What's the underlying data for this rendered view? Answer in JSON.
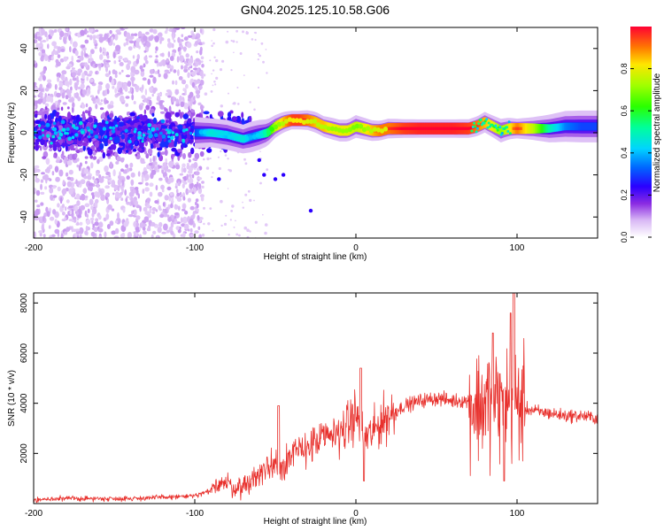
{
  "title": "GN04.2025.125.10.58.G06",
  "chart_data": [
    {
      "type": "heatmap",
      "xlabel": "Height of straight line (km)",
      "ylabel": "Frequency (Hz)",
      "xlim": [
        -200,
        150
      ],
      "ylim": [
        -50,
        50
      ],
      "xticks": [
        -200,
        -100,
        0,
        100
      ],
      "yticks": [
        -40,
        -20,
        0,
        20,
        40
      ],
      "colorbar": {
        "label": "Normalized spectral amplitude",
        "range": [
          0,
          1
        ],
        "ticks": [
          "0.0",
          "0.2",
          "0.4",
          "0.6",
          "0.8"
        ]
      },
      "ridge": {
        "x": [
          -200,
          -180,
          -160,
          -140,
          -120,
          -100,
          -90,
          -80,
          -70,
          -65,
          -60,
          -55,
          -50,
          -45,
          -40,
          -35,
          -30,
          -25,
          -20,
          -15,
          -10,
          -5,
          0,
          5,
          10,
          15,
          20,
          30,
          40,
          50,
          60,
          70,
          75,
          80,
          85,
          90,
          95,
          100,
          110,
          120,
          130,
          140,
          150
        ],
        "freq": [
          3,
          2,
          1,
          0,
          2,
          0,
          0,
          -1,
          -3,
          -2,
          -1,
          0,
          3,
          5,
          6,
          6,
          6,
          5,
          3,
          2,
          1,
          1,
          3,
          2,
          1,
          1,
          2,
          2,
          2,
          2,
          2,
          2,
          3,
          5,
          3,
          1,
          2,
          2,
          2,
          2,
          3,
          3,
          3
        ],
        "amplitude": [
          0.15,
          0.2,
          0.15,
          0.2,
          0.15,
          0.3,
          0.45,
          0.4,
          0.45,
          0.35,
          0.4,
          0.55,
          0.75,
          0.85,
          0.95,
          0.95,
          0.9,
          0.85,
          0.85,
          0.8,
          0.8,
          0.8,
          0.75,
          0.8,
          0.85,
          0.9,
          0.9,
          0.95,
          0.97,
          0.97,
          0.97,
          0.95,
          0.9,
          0.85,
          0.8,
          0.7,
          0.8,
          0.9,
          0.75,
          0.5,
          0.35,
          0.3,
          0.3
        ]
      }
    },
    {
      "type": "line",
      "xlabel": "Height of straight line (km)",
      "ylabel": "SNR (10 * v/v)",
      "xlim": [
        -200,
        150
      ],
      "ylim": [
        0,
        8400
      ],
      "xticks": [
        -200,
        -100,
        0,
        100
      ],
      "yticks": [
        2000,
        4000,
        6000,
        8000
      ],
      "color": "#e8302c",
      "series": [
        {
          "name": "SNR",
          "x": [
            -200,
            -180,
            -160,
            -140,
            -120,
            -100,
            -90,
            -85,
            -80,
            -75,
            -70,
            -65,
            -60,
            -55,
            -50,
            -45,
            -40,
            -35,
            -30,
            -25,
            -20,
            -15,
            -10,
            -5,
            0,
            5,
            10,
            15,
            20,
            25,
            30,
            40,
            50,
            60,
            70,
            75,
            80,
            85,
            90,
            95,
            100,
            105,
            110,
            120,
            130,
            140,
            150
          ],
          "y": [
            150,
            200,
            200,
            200,
            250,
            300,
            500,
            900,
            800,
            600,
            700,
            900,
            1200,
            1400,
            1700,
            1600,
            1900,
            2100,
            2300,
            2400,
            2600,
            2700,
            2900,
            3100,
            3600,
            2600,
            2800,
            3200,
            3500,
            3700,
            3900,
            4100,
            4200,
            4100,
            4100,
            3900,
            4000,
            4100,
            4000,
            4100,
            4000,
            3800,
            3700,
            3600,
            3500,
            3500,
            3400
          ],
          "notes": "plus high-frequency noise; peaks near -48 (about 3900), 3 (about 5400) and 98 (about 8400) km"
        }
      ]
    }
  ]
}
